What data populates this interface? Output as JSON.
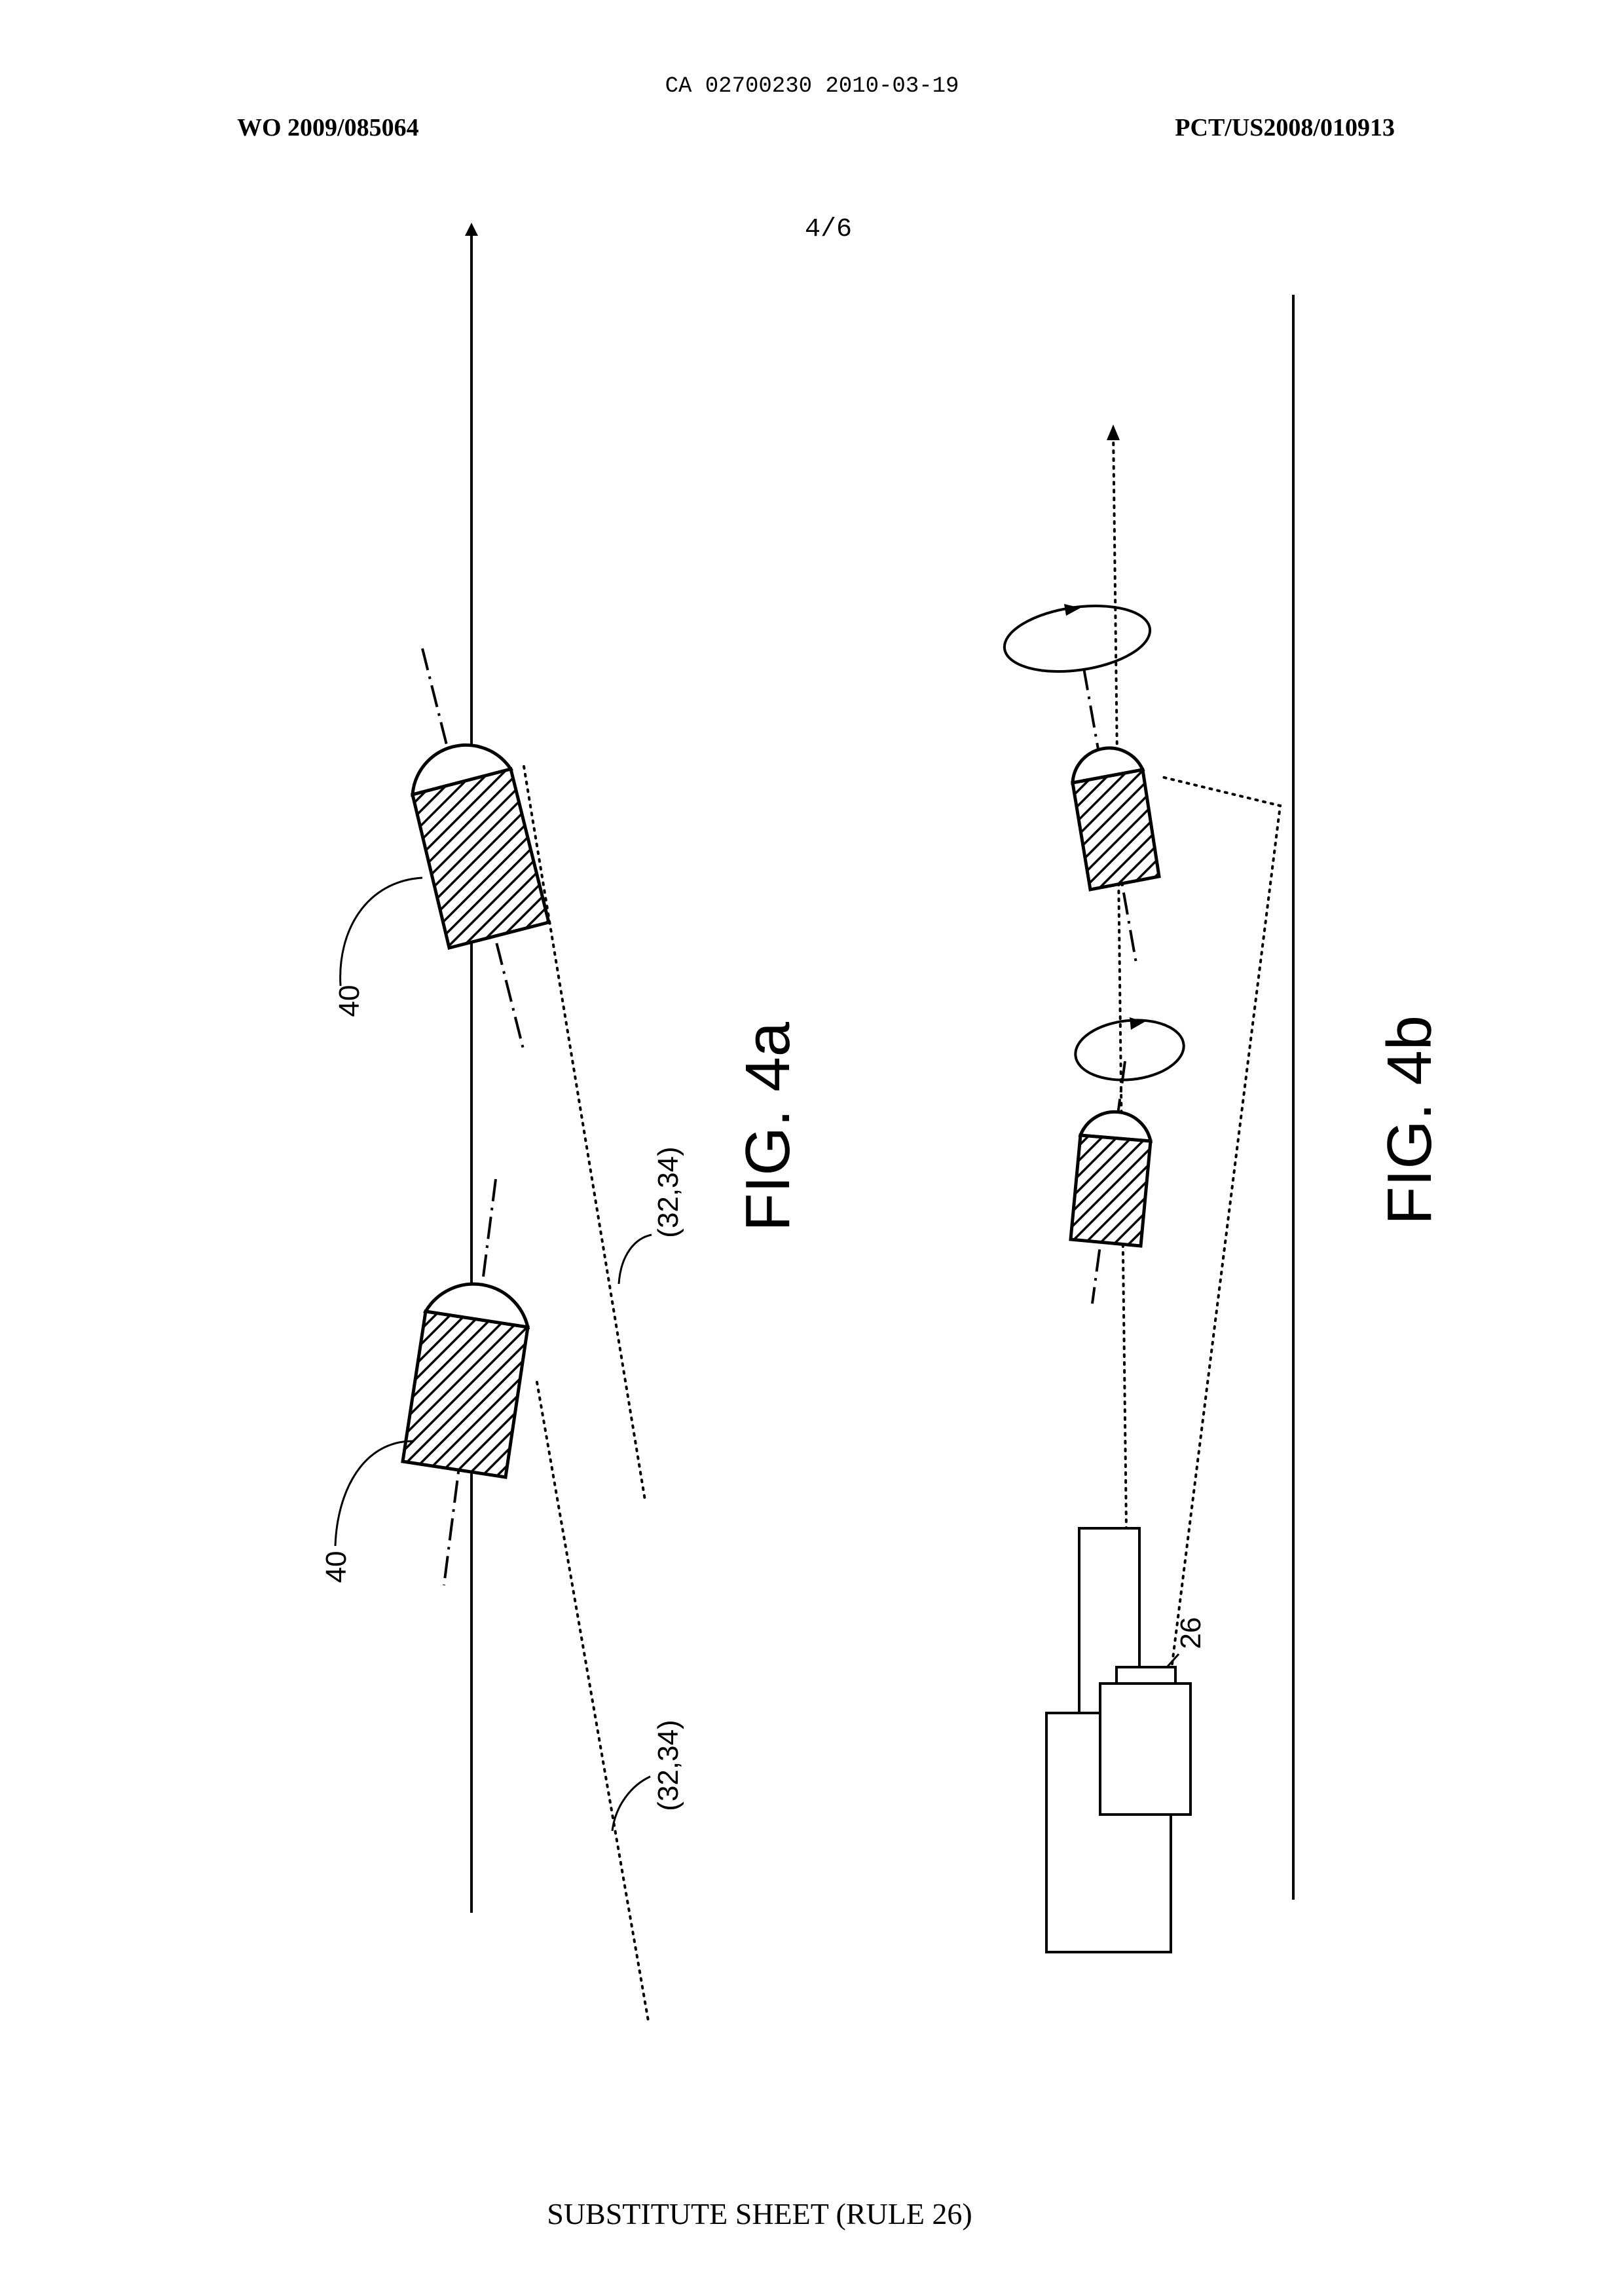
{
  "header": {
    "ca_number": "CA 02700230 2010-03-19",
    "wo_number": "WO 2009/085064",
    "pct_number": "PCT/US2008/010913",
    "sheet_number": "4/6"
  },
  "figures": {
    "fig4a": {
      "label": "FIG. 4a",
      "ref_projectile_top": "40",
      "ref_projectile_bottom": "40",
      "ref_beam_top": "(32,34)",
      "ref_beam_bottom": "(32,34)"
    },
    "fig4b": {
      "label": "FIG. 4b",
      "ref_sensor": "26"
    }
  },
  "footer": {
    "text": "SUBSTITUTE SHEET (RULE 26)"
  }
}
